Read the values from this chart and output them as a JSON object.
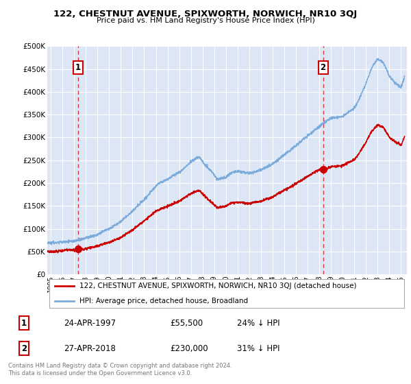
{
  "title": "122, CHESTNUT AVENUE, SPIXWORTH, NORWICH, NR10 3QJ",
  "subtitle": "Price paid vs. HM Land Registry's House Price Index (HPI)",
  "ylim": [
    0,
    500000
  ],
  "xlim_start": 1994.7,
  "xlim_end": 2025.5,
  "background_color": "#dce6f5",
  "red_color": "#cc0000",
  "blue_color": "#7aabdb",
  "sale1_year": 1997.32,
  "sale1_price": 55500,
  "sale2_year": 2018.32,
  "sale2_price": 230000,
  "legend_red_label": "122, CHESTNUT AVENUE, SPIXWORTH, NORWICH, NR10 3QJ (detached house)",
  "legend_blue_label": "HPI: Average price, detached house, Broadland",
  "annotation1_label": "1",
  "annotation2_label": "2",
  "table_rows": [
    {
      "num": "1",
      "date": "24-APR-1997",
      "price": "£55,500",
      "hpi": "24% ↓ HPI"
    },
    {
      "num": "2",
      "date": "27-APR-2018",
      "price": "£230,000",
      "hpi": "31% ↓ HPI"
    }
  ],
  "footer": "Contains HM Land Registry data © Crown copyright and database right 2024.\nThis data is licensed under the Open Government Licence v3.0.",
  "yticks": [
    0,
    50000,
    100000,
    150000,
    200000,
    250000,
    300000,
    350000,
    400000,
    450000,
    500000
  ],
  "ytick_labels": [
    "£0",
    "£50K",
    "£100K",
    "£150K",
    "£200K",
    "£250K",
    "£300K",
    "£350K",
    "£400K",
    "£450K",
    "£500K"
  ]
}
